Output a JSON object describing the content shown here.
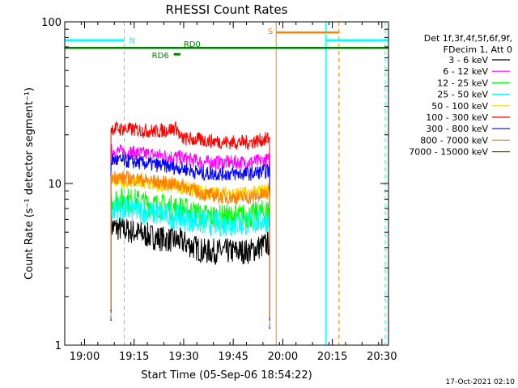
{
  "chart_data": {
    "type": "line",
    "title": "RHESSI Count Rates",
    "xlabel": "Start Time (05-Sep-06 18:54:22)",
    "ylabel": "Count Rate (s⁻¹ detector segment⁻¹)",
    "yscale": "log",
    "ylim": [
      1,
      100
    ],
    "xlim": [
      "18:54",
      "20:32"
    ],
    "x_ticks": [
      "19:00",
      "19:15",
      "19:30",
      "19:45",
      "20:00",
      "20:15",
      "20:30"
    ],
    "y_ticks": [
      "1",
      "10",
      "100"
    ],
    "grid": false,
    "legend_placement": "right",
    "legend_header": [
      "Det 1f,3f,4f,5f,6f,9f,",
      "FDecim 1, Att 0"
    ],
    "data_start": "19:08",
    "data_end": "19:56",
    "series": [
      {
        "name": "3 - 6 keV",
        "color": "#000000",
        "x": [
          "19:08",
          "19:15",
          "19:22",
          "19:29",
          "19:36",
          "19:43",
          "19:50",
          "19:56"
        ],
        "values": [
          5.4,
          5.0,
          4.6,
          4.4,
          3.8,
          3.8,
          3.8,
          4.3
        ]
      },
      {
        "name": "6 - 12 keV",
        "color": "#ff00ff",
        "x": [
          "19:08",
          "19:15",
          "19:22",
          "19:29",
          "19:36",
          "19:43",
          "19:50",
          "19:56"
        ],
        "values": [
          16.0,
          15.5,
          15.0,
          14.5,
          13.5,
          13.5,
          13.5,
          14.0
        ]
      },
      {
        "name": "12 - 25 keV",
        "color": "#00ff00",
        "x": [
          "19:08",
          "19:15",
          "19:22",
          "19:29",
          "19:36",
          "19:43",
          "19:50",
          "19:56"
        ],
        "values": [
          8.0,
          7.8,
          7.3,
          7.0,
          6.3,
          6.2,
          6.3,
          6.8
        ]
      },
      {
        "name": "25 - 50 keV",
        "color": "#00ffff",
        "x": [
          "19:08",
          "19:15",
          "19:22",
          "19:29",
          "19:36",
          "19:43",
          "19:50",
          "19:56"
        ],
        "values": [
          7.0,
          6.8,
          6.5,
          6.2,
          5.7,
          5.6,
          5.7,
          6.0
        ]
      },
      {
        "name": "50 - 100 keV",
        "color": "#ffd700",
        "x": [
          "19:08",
          "19:15",
          "19:22",
          "19:29",
          "19:36",
          "19:43",
          "19:50",
          "19:56"
        ],
        "values": [
          10.5,
          10.2,
          9.7,
          9.5,
          8.8,
          8.7,
          8.7,
          9.2
        ]
      },
      {
        "name": "100 - 300 keV",
        "color": "#ff0000",
        "x": [
          "19:08",
          "19:15",
          "19:22",
          "19:28",
          "19:29",
          "19:36",
          "19:43",
          "19:50",
          "19:56"
        ],
        "values": [
          22.0,
          21.5,
          21.0,
          22.0,
          19.0,
          18.5,
          18.0,
          18.0,
          19.0
        ]
      },
      {
        "name": "300 - 800 keV",
        "color": "#0000ff",
        "x": [
          "19:08",
          "19:15",
          "19:22",
          "19:29",
          "19:36",
          "19:43",
          "19:50",
          "19:56"
        ],
        "values": [
          14.0,
          13.6,
          13.0,
          12.5,
          11.5,
          11.5,
          11.5,
          12.0
        ]
      },
      {
        "name": "800 - 7000 keV",
        "color": "#ff8000",
        "x": [
          "19:08",
          "19:15",
          "19:22",
          "19:29",
          "19:36",
          "19:43",
          "19:50",
          "19:56"
        ],
        "values": [
          11.0,
          10.7,
          10.2,
          9.8,
          8.6,
          8.2,
          8.2,
          8.7
        ]
      },
      {
        "name": "7000 - 15000 keV",
        "color": "#806000",
        "x": [],
        "values": []
      }
    ],
    "annotations": [
      {
        "label": "N",
        "color": "#00ffff",
        "x_start": "18:54",
        "x_end": "19:12",
        "y": 77
      },
      {
        "label": "",
        "color": "#00ffff",
        "x_start": "20:13",
        "x_end": "20:32",
        "y": 77
      },
      {
        "label": "S",
        "color": "#ff8000",
        "x_start": "19:58",
        "x_end": "20:17",
        "y": 86
      },
      {
        "label": "RD0",
        "color": "#008000",
        "x_start": "18:54",
        "x_end": "20:32",
        "y": 69
      },
      {
        "label": "RD6",
        "color": "#008000",
        "x_start": "19:27",
        "x_end": "19:29",
        "y": 63
      }
    ],
    "vertical_lines": [
      {
        "x": "18:54",
        "color": "#00ffff",
        "style": "solid"
      },
      {
        "x": "19:12",
        "color": "#00ffff",
        "style": "dashed"
      },
      {
        "x": "19:58",
        "color": "#ff8000",
        "style": "solid"
      },
      {
        "x": "20:13",
        "color": "#00ffff",
        "style": "solid"
      },
      {
        "x": "20:17",
        "color": "#ff8000",
        "style": "dashed"
      },
      {
        "x": "20:31",
        "color": "#00ffff",
        "style": "dashed"
      }
    ],
    "footer": "17-Oct-2021 02:10"
  }
}
